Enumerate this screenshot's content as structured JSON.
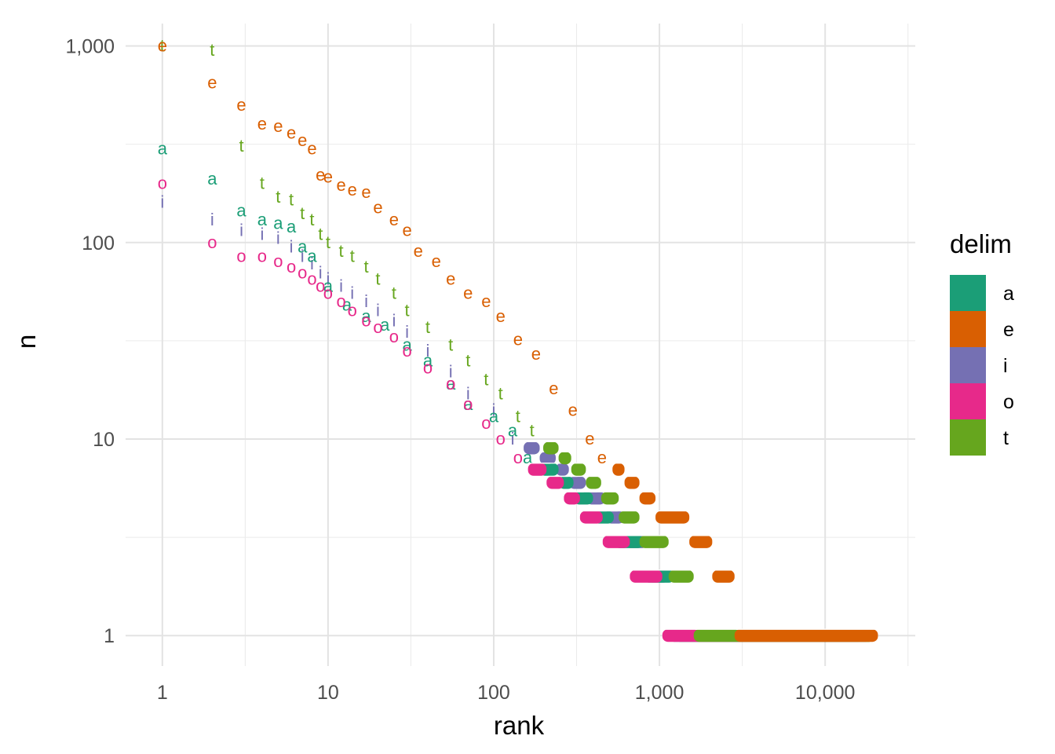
{
  "chart_data": {
    "type": "scatter",
    "x_scale": "log10",
    "y_scale": "log10",
    "xlabel": "rank",
    "ylabel": "n",
    "xlim": [
      0.6,
      35000
    ],
    "ylim": [
      0.7,
      1300
    ],
    "x_ticks": [
      {
        "value": 1,
        "label": "1"
      },
      {
        "value": 10,
        "label": "10"
      },
      {
        "value": 100,
        "label": "100"
      },
      {
        "value": 1000,
        "label": "1,000"
      },
      {
        "value": 10000,
        "label": "10,000"
      }
    ],
    "y_ticks": [
      {
        "value": 1,
        "label": "1"
      },
      {
        "value": 10,
        "label": "10"
      },
      {
        "value": 100,
        "label": "100"
      },
      {
        "value": 1000,
        "label": "1,000"
      }
    ],
    "grid": true,
    "legend": {
      "title": "delim",
      "position": "right"
    },
    "series": [
      {
        "name": "a",
        "color": "#1b9e77",
        "points": [
          [
            1,
            300
          ],
          [
            2,
            210
          ],
          [
            3,
            145
          ],
          [
            4,
            130
          ],
          [
            5,
            125
          ],
          [
            6,
            120
          ],
          [
            7,
            95
          ],
          [
            8,
            85
          ],
          [
            10,
            60
          ],
          [
            13,
            48
          ],
          [
            17,
            42
          ],
          [
            22,
            38
          ],
          [
            30,
            30
          ],
          [
            40,
            25
          ],
          [
            55,
            19
          ],
          [
            70,
            15
          ],
          [
            100,
            13
          ],
          [
            130,
            11
          ],
          [
            160,
            8
          ]
        ],
        "steps": [
          [
            200,
            7
          ],
          [
            260,
            6
          ],
          [
            320,
            5
          ],
          [
            420,
            4
          ],
          [
            560,
            3
          ],
          [
            850,
            2
          ],
          [
            1300,
            1
          ]
        ],
        "max_rank": 21000
      },
      {
        "name": "e",
        "color": "#d95f02",
        "points": [
          [
            1,
            1000
          ],
          [
            2,
            650
          ],
          [
            3,
            500
          ],
          [
            4,
            400
          ],
          [
            5,
            390
          ],
          [
            6,
            360
          ],
          [
            7,
            330
          ],
          [
            8,
            300
          ],
          [
            9,
            220
          ],
          [
            10,
            215
          ],
          [
            12,
            195
          ],
          [
            14,
            185
          ],
          [
            17,
            180
          ],
          [
            20,
            150
          ],
          [
            25,
            130
          ],
          [
            30,
            115
          ],
          [
            35,
            90
          ],
          [
            45,
            80
          ],
          [
            55,
            65
          ],
          [
            70,
            55
          ],
          [
            90,
            50
          ],
          [
            110,
            42
          ],
          [
            140,
            32
          ],
          [
            180,
            27
          ],
          [
            230,
            18
          ],
          [
            300,
            14
          ],
          [
            380,
            10
          ],
          [
            450,
            8
          ]
        ],
        "steps": [
          [
            550,
            7
          ],
          [
            650,
            6
          ],
          [
            800,
            5
          ],
          [
            1000,
            4
          ],
          [
            1600,
            3
          ],
          [
            2200,
            2
          ],
          [
            3000,
            1
          ]
        ],
        "max_rank": 22000
      },
      {
        "name": "i",
        "color": "#7570b3",
        "points": [
          [
            1,
            160
          ],
          [
            2,
            130
          ],
          [
            3,
            115
          ],
          [
            4,
            110
          ],
          [
            5,
            105
          ],
          [
            6,
            95
          ],
          [
            7,
            85
          ],
          [
            8,
            78
          ],
          [
            9,
            70
          ],
          [
            10,
            65
          ],
          [
            12,
            60
          ],
          [
            14,
            55
          ],
          [
            17,
            50
          ],
          [
            20,
            45
          ],
          [
            25,
            40
          ],
          [
            30,
            35
          ],
          [
            40,
            28
          ],
          [
            55,
            22
          ],
          [
            70,
            17
          ],
          [
            100,
            14
          ],
          [
            130,
            10
          ]
        ],
        "steps": [
          [
            160,
            9
          ],
          [
            200,
            8
          ],
          [
            250,
            7
          ],
          [
            300,
            6
          ],
          [
            380,
            5
          ],
          [
            500,
            4
          ],
          [
            650,
            3
          ],
          [
            900,
            2
          ],
          [
            1200,
            1
          ]
        ],
        "max_rank": 18000
      },
      {
        "name": "o",
        "color": "#e7298a",
        "points": [
          [
            1,
            200
          ],
          [
            2,
            100
          ],
          [
            3,
            85
          ],
          [
            4,
            85
          ],
          [
            5,
            80
          ],
          [
            6,
            75
          ],
          [
            7,
            70
          ],
          [
            8,
            65
          ],
          [
            9,
            60
          ],
          [
            10,
            55
          ],
          [
            12,
            50
          ],
          [
            14,
            45
          ],
          [
            17,
            40
          ],
          [
            20,
            37
          ],
          [
            25,
            33
          ],
          [
            30,
            28
          ],
          [
            40,
            23
          ],
          [
            55,
            19
          ],
          [
            70,
            15
          ],
          [
            90,
            12
          ],
          [
            110,
            10
          ],
          [
            140,
            8
          ]
        ],
        "steps": [
          [
            170,
            7
          ],
          [
            220,
            6
          ],
          [
            280,
            5
          ],
          [
            350,
            4
          ],
          [
            480,
            3
          ],
          [
            700,
            2
          ],
          [
            1100,
            1
          ]
        ],
        "max_rank": 20000
      },
      {
        "name": "t",
        "color": "#66a61e",
        "points": [
          [
            1,
            1000
          ],
          [
            2,
            950
          ],
          [
            3,
            310
          ],
          [
            4,
            200
          ],
          [
            5,
            170
          ],
          [
            6,
            165
          ],
          [
            7,
            140
          ],
          [
            8,
            130
          ],
          [
            9,
            110
          ],
          [
            10,
            100
          ],
          [
            12,
            90
          ],
          [
            14,
            85
          ],
          [
            17,
            75
          ],
          [
            20,
            65
          ],
          [
            25,
            55
          ],
          [
            30,
            45
          ],
          [
            40,
            37
          ],
          [
            55,
            30
          ],
          [
            70,
            25
          ],
          [
            90,
            20
          ],
          [
            110,
            17
          ],
          [
            140,
            13
          ],
          [
            170,
            11
          ]
        ],
        "steps": [
          [
            210,
            9
          ],
          [
            260,
            8
          ],
          [
            310,
            7
          ],
          [
            380,
            6
          ],
          [
            470,
            5
          ],
          [
            600,
            4
          ],
          [
            800,
            3
          ],
          [
            1200,
            2
          ],
          [
            1700,
            1
          ]
        ],
        "max_rank": 21000
      }
    ]
  }
}
